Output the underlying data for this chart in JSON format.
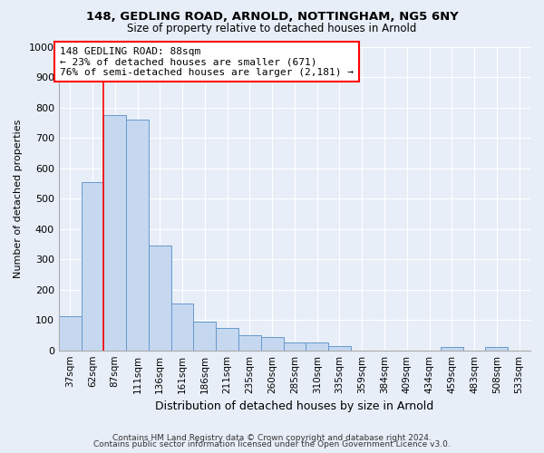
{
  "title1": "148, GEDLING ROAD, ARNOLD, NOTTINGHAM, NG5 6NY",
  "title2": "Size of property relative to detached houses in Arnold",
  "xlabel": "Distribution of detached houses by size in Arnold",
  "ylabel": "Number of detached properties",
  "categories": [
    "37sqm",
    "62sqm",
    "87sqm",
    "111sqm",
    "136sqm",
    "161sqm",
    "186sqm",
    "211sqm",
    "235sqm",
    "260sqm",
    "285sqm",
    "310sqm",
    "335sqm",
    "359sqm",
    "384sqm",
    "409sqm",
    "434sqm",
    "459sqm",
    "483sqm",
    "508sqm",
    "533sqm"
  ],
  "values": [
    113,
    555,
    775,
    760,
    345,
    155,
    95,
    75,
    50,
    45,
    25,
    25,
    15,
    0,
    0,
    0,
    0,
    12,
    0,
    12,
    0
  ],
  "bar_color": "#c5d8f0",
  "bar_edge_color": "#6699cc",
  "annotation_text": "148 GEDLING ROAD: 88sqm\n← 23% of detached houses are smaller (671)\n76% of semi-detached houses are larger (2,181) →",
  "annotation_box_color": "white",
  "annotation_box_edge": "red",
  "vline_color": "red",
  "ylim": [
    0,
    1000
  ],
  "yticks": [
    0,
    100,
    200,
    300,
    400,
    500,
    600,
    700,
    800,
    900,
    1000
  ],
  "footer1": "Contains HM Land Registry data © Crown copyright and database right 2024.",
  "footer2": "Contains public sector information licensed under the Open Government Licence v3.0.",
  "bg_color": "#e8eef8",
  "plot_bg_color": "#e8eef8",
  "grid_color": "#ffffff"
}
